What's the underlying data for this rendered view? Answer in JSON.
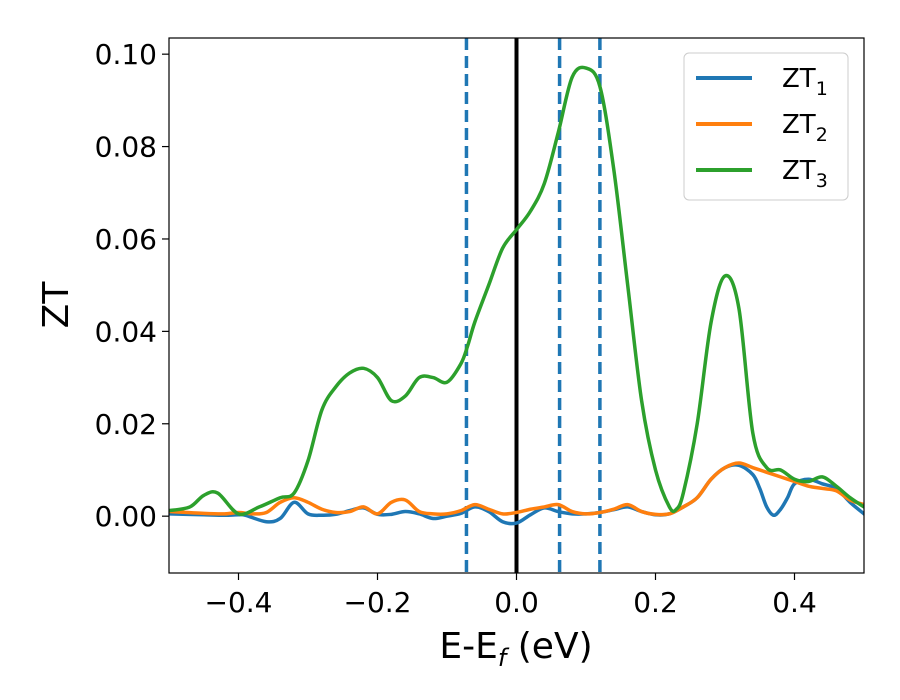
{
  "chart_data": {
    "type": "line",
    "title": "",
    "xlabel": "E-E",
    "xlabel_sub": "f",
    "xlabel_unit": " (eV)",
    "ylabel": "ZT",
    "xlim": [
      -0.5,
      0.5
    ],
    "ylim": [
      -0.0123,
      0.1035
    ],
    "xticks": [
      -0.4,
      -0.2,
      0.0,
      0.2,
      0.4
    ],
    "xtick_labels": [
      "−0.4",
      "−0.2",
      "0.0",
      "0.2",
      "0.4"
    ],
    "yticks": [
      0.0,
      0.02,
      0.04,
      0.06,
      0.08,
      0.1
    ],
    "ytick_labels": [
      "0.00",
      "0.02",
      "0.04",
      "0.06",
      "0.08",
      "0.10"
    ],
    "grid": false,
    "legend_position": "top-right",
    "vertical_lines": [
      {
        "x": -0.072,
        "style": "dashed",
        "color": "#1f77b4"
      },
      {
        "x": 0.0,
        "style": "solid",
        "color": "#000000"
      },
      {
        "x": 0.062,
        "style": "dashed",
        "color": "#1f77b4"
      },
      {
        "x": 0.12,
        "style": "dashed",
        "color": "#1f77b4"
      }
    ],
    "series": [
      {
        "name": "ZT",
        "name_sub": "1",
        "color": "#1f77b4",
        "x": [
          -0.5,
          -0.45,
          -0.42,
          -0.4,
          -0.39,
          -0.36,
          -0.34,
          -0.32,
          -0.3,
          -0.28,
          -0.26,
          -0.24,
          -0.22,
          -0.2,
          -0.18,
          -0.16,
          -0.14,
          -0.12,
          -0.1,
          -0.08,
          -0.06,
          -0.04,
          -0.02,
          0.0,
          0.02,
          0.04,
          0.06,
          0.08,
          0.1,
          0.12,
          0.14,
          0.16,
          0.18,
          0.2,
          0.22,
          0.24,
          0.26,
          0.28,
          0.3,
          0.32,
          0.34,
          0.35,
          0.36,
          0.37,
          0.38,
          0.39,
          0.4,
          0.42,
          0.44,
          0.46,
          0.48,
          0.5
        ],
        "y": [
          0.0005,
          0.0003,
          0.0002,
          0.0003,
          0.0002,
          -0.0012,
          -0.0005,
          0.003,
          0.0005,
          0.0002,
          0.0004,
          0.0012,
          0.0018,
          0.0004,
          0.0004,
          0.001,
          0.0005,
          -0.0005,
          0.0,
          0.0006,
          0.002,
          0.001,
          -0.0012,
          -0.0015,
          0.0003,
          0.0018,
          0.001,
          0.0005,
          0.0005,
          0.0008,
          0.0014,
          0.002,
          0.001,
          0.0003,
          0.0005,
          0.002,
          0.004,
          0.008,
          0.0105,
          0.011,
          0.009,
          0.006,
          0.002,
          0.0002,
          0.0015,
          0.004,
          0.007,
          0.008,
          0.007,
          0.006,
          0.003,
          0.0005
        ]
      },
      {
        "name": "ZT",
        "name_sub": "2",
        "color": "#ff7f0e",
        "x": [
          -0.5,
          -0.45,
          -0.42,
          -0.4,
          -0.38,
          -0.36,
          -0.34,
          -0.32,
          -0.3,
          -0.28,
          -0.26,
          -0.24,
          -0.22,
          -0.2,
          -0.18,
          -0.16,
          -0.14,
          -0.12,
          -0.1,
          -0.08,
          -0.06,
          -0.04,
          -0.02,
          0.0,
          0.02,
          0.04,
          0.06,
          0.08,
          0.1,
          0.12,
          0.14,
          0.16,
          0.18,
          0.2,
          0.22,
          0.24,
          0.26,
          0.28,
          0.3,
          0.32,
          0.34,
          0.36,
          0.38,
          0.4,
          0.42,
          0.44,
          0.46,
          0.48,
          0.5
        ],
        "y": [
          0.001,
          0.0006,
          0.0005,
          0.0008,
          0.0005,
          0.0008,
          0.003,
          0.004,
          0.003,
          0.0015,
          0.0008,
          0.001,
          0.002,
          0.0005,
          0.003,
          0.0035,
          0.001,
          0.0005,
          0.0005,
          0.0012,
          0.0025,
          0.0015,
          0.0005,
          0.0008,
          0.0015,
          0.002,
          0.0025,
          0.001,
          0.0005,
          0.0008,
          0.0015,
          0.0025,
          0.001,
          0.0004,
          0.0005,
          0.002,
          0.004,
          0.008,
          0.0105,
          0.0115,
          0.0105,
          0.0095,
          0.0085,
          0.0075,
          0.0065,
          0.006,
          0.0055,
          0.0035,
          0.0025
        ]
      },
      {
        "name": "ZT",
        "name_sub": "3",
        "color": "#2ca02c",
        "x": [
          -0.5,
          -0.47,
          -0.45,
          -0.43,
          -0.4,
          -0.37,
          -0.34,
          -0.32,
          -0.3,
          -0.28,
          -0.26,
          -0.24,
          -0.22,
          -0.2,
          -0.18,
          -0.16,
          -0.14,
          -0.12,
          -0.1,
          -0.08,
          -0.07,
          -0.06,
          -0.04,
          -0.02,
          0.0,
          0.02,
          0.04,
          0.06,
          0.08,
          0.1,
          0.12,
          0.14,
          0.16,
          0.18,
          0.2,
          0.22,
          0.23,
          0.24,
          0.26,
          0.28,
          0.3,
          0.32,
          0.34,
          0.36,
          0.38,
          0.4,
          0.42,
          0.44,
          0.46,
          0.48,
          0.5
        ],
        "y": [
          0.0012,
          0.002,
          0.0045,
          0.005,
          0.0005,
          0.002,
          0.004,
          0.005,
          0.012,
          0.023,
          0.028,
          0.031,
          0.032,
          0.03,
          0.025,
          0.026,
          0.03,
          0.03,
          0.029,
          0.033,
          0.037,
          0.042,
          0.05,
          0.058,
          0.062,
          0.066,
          0.072,
          0.083,
          0.095,
          0.097,
          0.093,
          0.075,
          0.05,
          0.025,
          0.01,
          0.002,
          0.0015,
          0.005,
          0.02,
          0.042,
          0.052,
          0.045,
          0.018,
          0.0105,
          0.01,
          0.008,
          0.0075,
          0.0085,
          0.0065,
          0.004,
          0.002
        ]
      }
    ]
  }
}
